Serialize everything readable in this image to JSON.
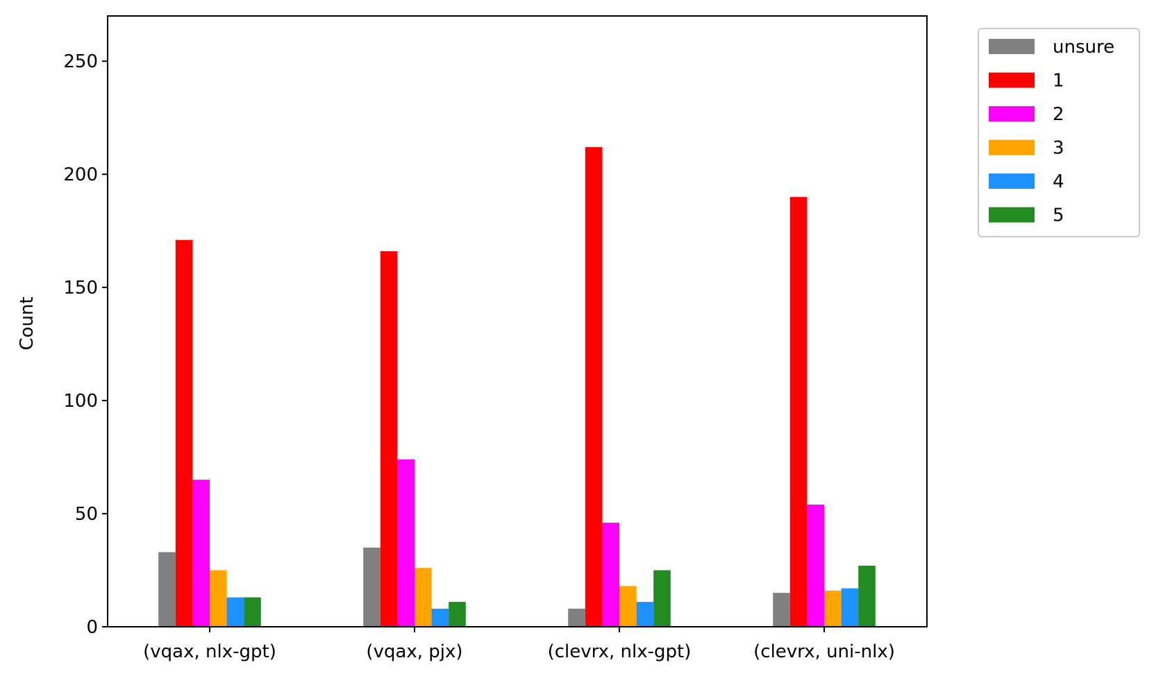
{
  "chart_data": {
    "type": "bar",
    "title": "",
    "xlabel": "",
    "ylabel": "Count",
    "categories": [
      "(vqax, nlx-gpt)",
      "(vqax, pjx)",
      "(clevrx, nlx-gpt)",
      "(clevrx, uni-nlx)"
    ],
    "series": [
      {
        "name": "unsure",
        "color": "#808080",
        "values": [
          33,
          35,
          8,
          15
        ]
      },
      {
        "name": "1",
        "color": "#ff0000",
        "values": [
          171,
          166,
          212,
          190
        ]
      },
      {
        "name": "2",
        "color": "#ff00ff",
        "values": [
          65,
          74,
          46,
          54
        ]
      },
      {
        "name": "3",
        "color": "#ffa500",
        "values": [
          25,
          26,
          18,
          16
        ]
      },
      {
        "name": "4",
        "color": "#1e90ff",
        "values": [
          13,
          8,
          11,
          17
        ]
      },
      {
        "name": "5",
        "color": "#228b22",
        "values": [
          13,
          11,
          25,
          27
        ]
      }
    ],
    "ylim": [
      0,
      270
    ],
    "yticks": [
      0,
      50,
      100,
      150,
      200,
      250
    ],
    "grid": false,
    "legend_position": "outside-top-right"
  }
}
